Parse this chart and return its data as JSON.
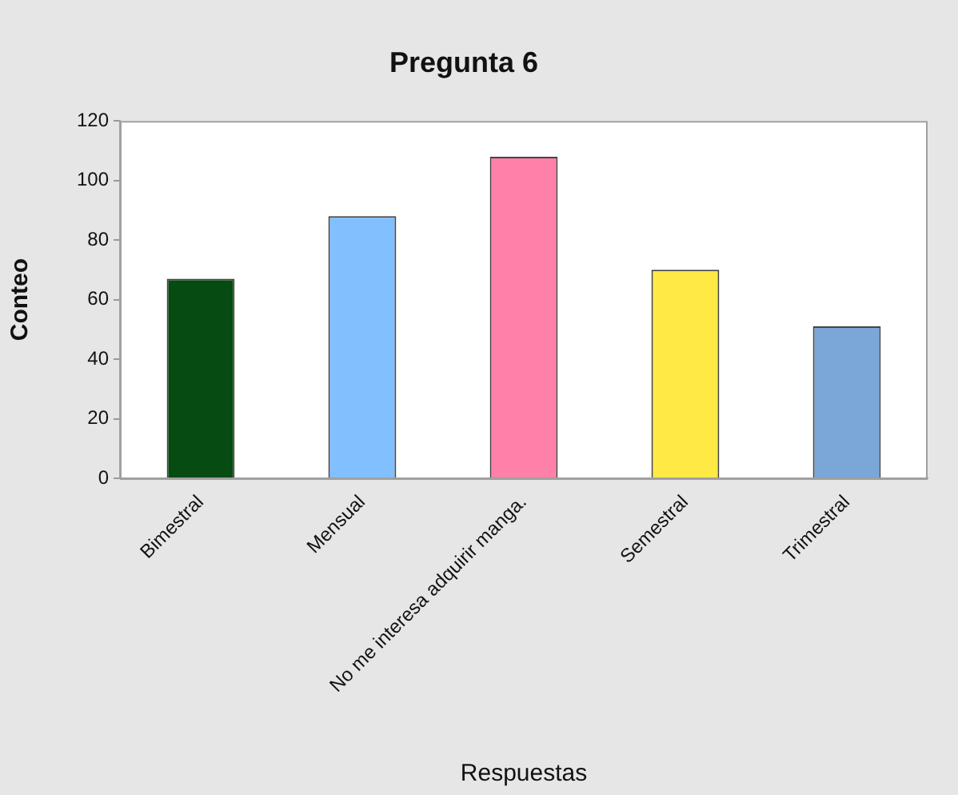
{
  "chart_data": {
    "type": "bar",
    "title": "Pregunta 6",
    "xlabel": "Respuestas",
    "ylabel": "Conteo",
    "categories": [
      "Bimestral",
      "Mensual",
      "No me interesa adquirir manga.",
      "Semestral",
      "Trimestral"
    ],
    "values": [
      67,
      88,
      108,
      70,
      51
    ],
    "colors": [
      "#064b12",
      "#82bfff",
      "#ff80a8",
      "#ffe945",
      "#7ba6d8"
    ],
    "ylim": [
      0,
      120
    ],
    "yticks": [
      0,
      20,
      40,
      60,
      80,
      100,
      120
    ],
    "grid": false,
    "legend": false
  }
}
